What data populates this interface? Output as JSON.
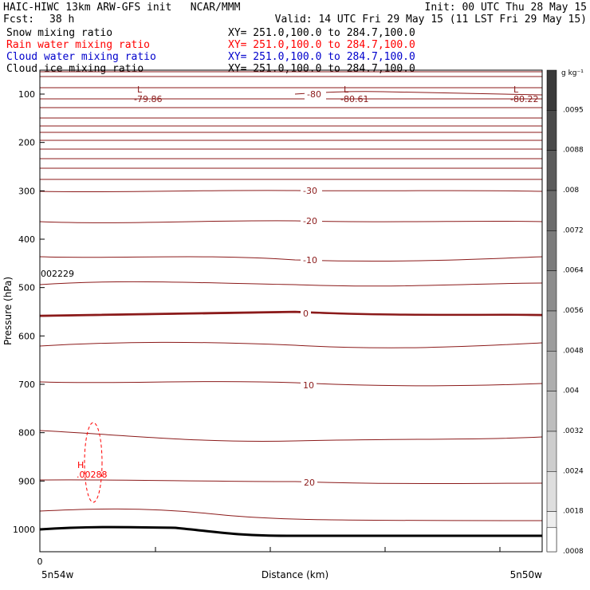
{
  "header": {
    "title_left": "HAIC-HIWC 13km ARW-GFS init   NCAR/MMM",
    "init": "Init: 00 UTC Thu 28 May 15",
    "fcst_label": "Fcst:",
    "fcst_value": "38 h",
    "valid": "Valid: 14 UTC Fri 29 May 15 (11 LST Fri 29 May 15)",
    "fields": [
      {
        "name": "Snow mixing ratio",
        "xy": "XY= 251.0,100.0 to 284.7,100.0",
        "color": "#000000"
      },
      {
        "name": "Rain water mixing ratio",
        "xy": "XY= 251.0,100.0 to 284.7,100.0",
        "color": "#ff0000"
      },
      {
        "name": "Cloud water mixing ratio",
        "xy": "XY= 251.0,100.0 to 284.7,100.0",
        "color": "#0000cc"
      },
      {
        "name": "Cloud ice mixing ratio",
        "xy": "XY= 251.0,100.0 to 284.7,100.0",
        "color": "#000000"
      }
    ]
  },
  "chart_data": {
    "type": "line",
    "xlabel": "Distance (km)",
    "ylabel": "Pressure (hPa)",
    "x_left_label": "5n54w",
    "x_right_label": "5n50w",
    "x_zero_label": "0",
    "y_ticks": [
      "100",
      "200",
      "300",
      "400",
      "500",
      "600",
      "700",
      "800",
      "900",
      "1000"
    ],
    "ylim": [
      1050,
      50
    ],
    "temperature_contour_labels": [
      "-80",
      "-30",
      "-20",
      "-10",
      "0",
      "10",
      "20"
    ],
    "lows": [
      {
        "symbol": "L",
        "value": "-79.86"
      },
      {
        "symbol": "L",
        "value": "-80.61"
      },
      {
        "symbol": "L",
        "value": "-80.22"
      }
    ],
    "rain_high": {
      "symbol": "H",
      "value": ".00288"
    },
    "snow_label": "002229",
    "colorbar": {
      "units": "g kg⁻¹",
      "labels": [
        ".0095",
        ".0088",
        ".008",
        ".0072",
        ".0064",
        ".0056",
        ".0048",
        ".004",
        ".0032",
        ".0024",
        ".0018",
        ".0008"
      ]
    },
    "colors": {
      "contour": "#8b1a1a",
      "surface": "#000000",
      "rain": "#ff0000"
    }
  }
}
